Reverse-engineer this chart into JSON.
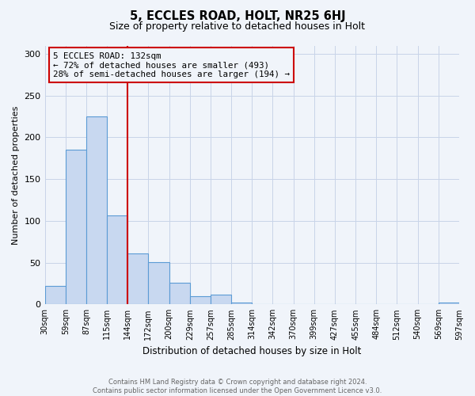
{
  "title": "5, ECCLES ROAD, HOLT, NR25 6HJ",
  "subtitle": "Size of property relative to detached houses in Holt",
  "xlabel": "Distribution of detached houses by size in Holt",
  "ylabel": "Number of detached properties",
  "bar_values": [
    22,
    185,
    225,
    107,
    61,
    51,
    26,
    10,
    12,
    2,
    0,
    0,
    0,
    0,
    0,
    0,
    0,
    0,
    0,
    2
  ],
  "bin_labels": [
    "30sqm",
    "59sqm",
    "87sqm",
    "115sqm",
    "144sqm",
    "172sqm",
    "200sqm",
    "229sqm",
    "257sqm",
    "285sqm",
    "314sqm",
    "342sqm",
    "370sqm",
    "399sqm",
    "427sqm",
    "455sqm",
    "484sqm",
    "512sqm",
    "540sqm",
    "569sqm",
    "597sqm"
  ],
  "ylim": [
    0,
    310
  ],
  "yticks": [
    0,
    50,
    100,
    150,
    200,
    250,
    300
  ],
  "bar_color": "#c8d8f0",
  "bar_edgecolor": "#5b9bd5",
  "annotation_line_color": "#cc0000",
  "annotation_text": "5 ECCLES ROAD: 132sqm\n← 72% of detached houses are smaller (493)\n28% of semi-detached houses are larger (194) →",
  "prop_bin_edge": 4,
  "footer_line1": "Contains HM Land Registry data © Crown copyright and database right 2024.",
  "footer_line2": "Contains public sector information licensed under the Open Government Licence v3.0.",
  "background_color": "#f0f4fa",
  "grid_color": "#c8d4e8"
}
